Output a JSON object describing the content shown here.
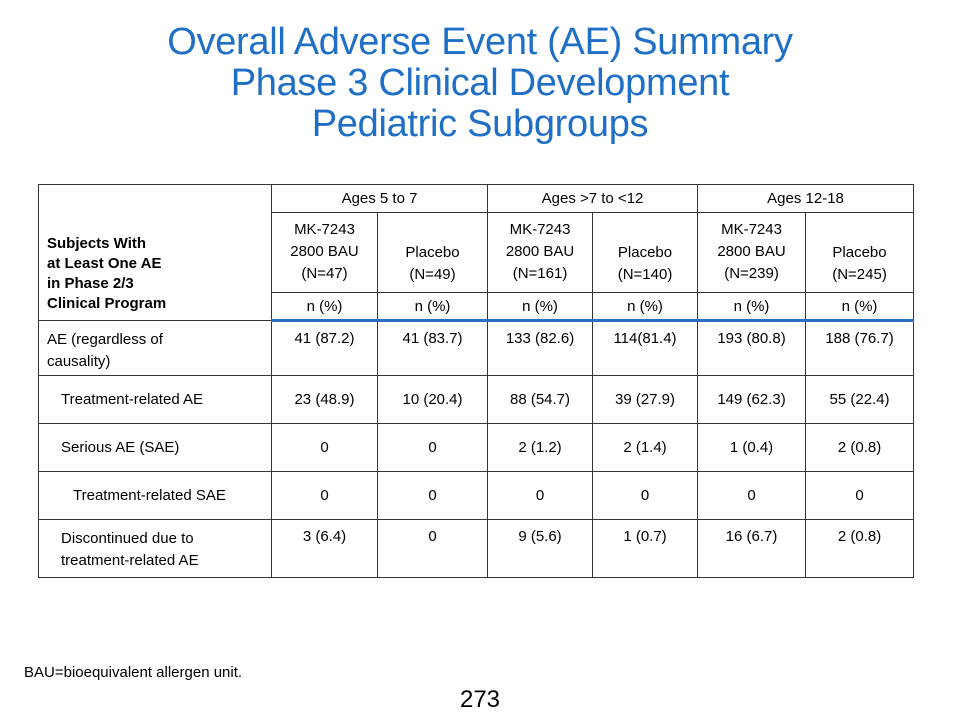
{
  "title": {
    "line1": "Overall Adverse Event (AE) Summary",
    "line2": "Phase 3 Clinical Development",
    "line3": "Pediatric Subgroups"
  },
  "table": {
    "header_label": [
      "Subjects With",
      "at Least One AE",
      "in Phase 2/3",
      "Clinical Program"
    ],
    "groups": [
      "Ages 5 to 7",
      "Ages >7 to <12",
      "Ages 12-18"
    ],
    "arms": [
      {
        "name_lines": [
          "MK-7243",
          "2800 BAU"
        ],
        "n": "(N=47)"
      },
      {
        "name_lines": [
          "Placebo"
        ],
        "n": "(N=49)"
      },
      {
        "name_lines": [
          "MK-7243",
          "2800 BAU"
        ],
        "n": "(N=161)"
      },
      {
        "name_lines": [
          "Placebo"
        ],
        "n": "(N=140)"
      },
      {
        "name_lines": [
          "MK-7243",
          "2800 BAU"
        ],
        "n": "(N=239)"
      },
      {
        "name_lines": [
          "Placebo"
        ],
        "n": "(N=245)"
      }
    ],
    "unit": "n (%)",
    "rows": [
      {
        "label_lines": [
          "AE (regardless of",
          "causality)"
        ],
        "values": [
          "41 (87.2)",
          "41 (83.7)",
          "133 (82.6)",
          "114(81.4)",
          "193 (80.8)",
          "188 (76.7)"
        ]
      },
      {
        "label_lines": [
          "Treatment-related AE"
        ],
        "values": [
          "23 (48.9)",
          "10 (20.4)",
          "88 (54.7)",
          "39 (27.9)",
          "149 (62.3)",
          "55 (22.4)"
        ]
      },
      {
        "label_lines": [
          "Serious AE (SAE)"
        ],
        "values": [
          "0",
          "0",
          "2 (1.2)",
          "2 (1.4)",
          "1 (0.4)",
          "2 (0.8)"
        ]
      },
      {
        "label_lines": [
          "Treatment-related SAE"
        ],
        "values": [
          "0",
          "0",
          "0",
          "0",
          "0",
          "0"
        ]
      },
      {
        "label_lines": [
          "Discontinued due to",
          "treatment-related AE"
        ],
        "values": [
          "3 (6.4)",
          "0",
          "9 (5.6)",
          "1 (0.7)",
          "16 (6.7)",
          "2 (0.8)"
        ]
      }
    ]
  },
  "footnote": "BAU=bioequivalent allergen unit.",
  "page_number": "273",
  "colors": {
    "title": "#1f6fc6",
    "header_rule": "#2a6fc1"
  }
}
